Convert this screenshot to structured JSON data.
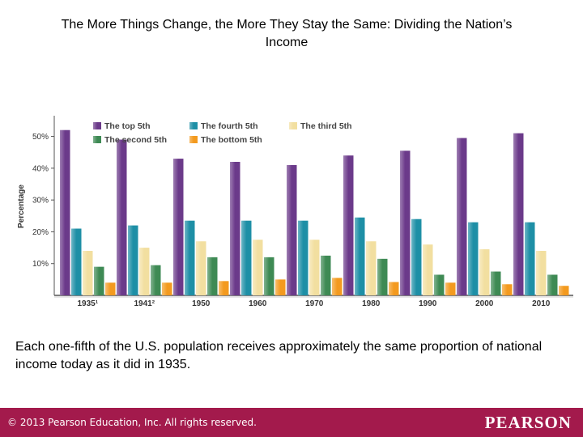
{
  "slide": {
    "title": "The More Things Change, the More They Stay the Same: Dividing the Nation’s Income",
    "caption": "Each one-fifth of the U.S. population receives approximately the same proportion of national income today as it did in 1935.",
    "copyright": "© 2013  Pearson Education, Inc. All rights reserved.",
    "brand": "PEARSON"
  },
  "colors": {
    "footer": "#a31a4c",
    "top": "#6b3a8a",
    "fourth": "#1e8fa6",
    "third": "#f2dfa0",
    "second": "#3e8a54",
    "bottom": "#f39a1f",
    "axis": "#555555",
    "panel_shadow": "#e8e8e8"
  },
  "chart_data": {
    "type": "bar",
    "title": "",
    "xlabel": "",
    "ylabel": "Percentage",
    "ylim": [
      0,
      56
    ],
    "yticks": [
      10,
      20,
      30,
      40,
      50
    ],
    "ytick_labels": [
      "10%",
      "20%",
      "30%",
      "40%",
      "50%"
    ],
    "grid": false,
    "legend_position": "top-left",
    "categories": [
      "1935¹",
      "1941²",
      "1950",
      "1960",
      "1970",
      "1980",
      "1990",
      "2000",
      "2010"
    ],
    "series": [
      {
        "name": "The top 5th",
        "color_key": "top",
        "values": [
          52,
          49,
          43,
          42,
          41,
          44,
          45.5,
          49.5,
          51
        ]
      },
      {
        "name": "The fourth 5th",
        "color_key": "fourth",
        "values": [
          21,
          22,
          23.5,
          23.5,
          23.5,
          24.5,
          24,
          23,
          23
        ]
      },
      {
        "name": "The third 5th",
        "color_key": "third",
        "values": [
          14,
          15,
          17,
          17.5,
          17.5,
          17,
          16,
          14.5,
          14
        ]
      },
      {
        "name": "The second 5th",
        "color_key": "second",
        "values": [
          9,
          9.5,
          12,
          12,
          12.5,
          11.5,
          6.5,
          7.5,
          6.5
        ]
      },
      {
        "name": "The bottom 5th",
        "color_key": "bottom",
        "values": [
          4,
          4,
          4.5,
          5,
          5.5,
          4.2,
          4,
          3.5,
          3
        ]
      }
    ],
    "legend_order": [
      0,
      1,
      2,
      3,
      4
    ]
  }
}
